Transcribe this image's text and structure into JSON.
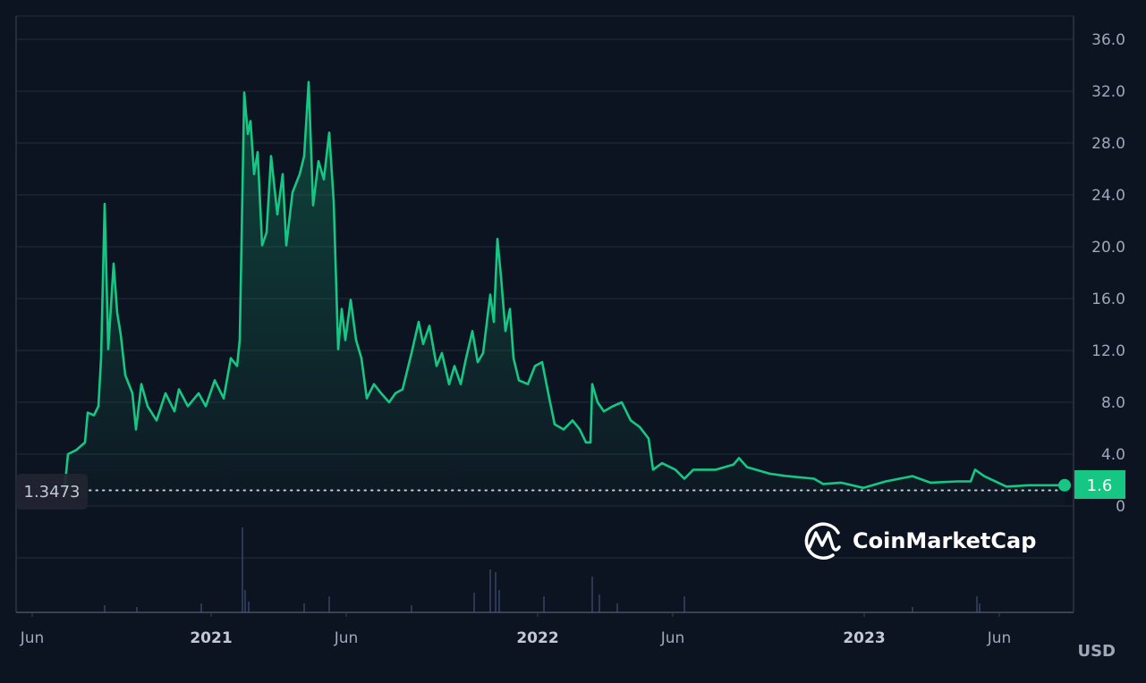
{
  "chart_data": {
    "type": "area",
    "title": "",
    "xlabel": "",
    "ylabel": "",
    "unit_label": "USD",
    "ylim": [
      0,
      36
    ],
    "y_ticks": [
      "0",
      "4.0",
      "8.0",
      "12.0",
      "16.0",
      "20.0",
      "24.0",
      "28.0",
      "32.0",
      "36.0"
    ],
    "y_tick_values": [
      0,
      4,
      8,
      12,
      16,
      20,
      24,
      28,
      32,
      36
    ],
    "x_ticks": [
      {
        "label": "Jun",
        "date": "2020-06-01",
        "year": false
      },
      {
        "label": "2021",
        "date": "2021-01-01",
        "year": true
      },
      {
        "label": "Jun",
        "date": "2021-06-01",
        "year": false
      },
      {
        "label": "2022",
        "date": "2022-01-01",
        "year": true
      },
      {
        "label": "Jun",
        "date": "2022-06-01",
        "year": false
      },
      {
        "label": "2023",
        "date": "2023-01-01",
        "year": true
      },
      {
        "label": "Jun",
        "date": "2023-06-01",
        "year": false
      }
    ],
    "grid": true,
    "line_color": "#16c784",
    "current_price_label": "1.6",
    "reference_price_label": "1.3473",
    "reference_price": 1.3473,
    "watermark": "CoinMarketCap",
    "series": [
      {
        "x": [
          "2020-07-21",
          "2020-07-25",
          "2020-08-03",
          "2020-08-13",
          "2020-08-16",
          "2020-08-23",
          "2020-08-28",
          "2020-08-31",
          "2020-09-04",
          "2020-09-08",
          "2020-09-14",
          "2020-09-18",
          "2020-09-22",
          "2020-09-27",
          "2020-10-05",
          "2020-10-09",
          "2020-10-15",
          "2020-10-22",
          "2020-11-01",
          "2020-11-11",
          "2020-11-21",
          "2020-11-26",
          "2020-12-06",
          "2020-12-18",
          "2020-12-26",
          "2021-01-05",
          "2021-01-15",
          "2021-01-23",
          "2021-01-30",
          "2021-02-02",
          "2021-02-07",
          "2021-02-11",
          "2021-02-14",
          "2021-02-18",
          "2021-02-22",
          "2021-02-27",
          "2021-03-04",
          "2021-03-09",
          "2021-03-16",
          "2021-03-22",
          "2021-03-26",
          "2021-04-02",
          "2021-04-10",
          "2021-04-15",
          "2021-04-20",
          "2021-04-25",
          "2021-05-01",
          "2021-05-07",
          "2021-05-13",
          "2021-05-18",
          "2021-05-23",
          "2021-05-27",
          "2021-05-31",
          "2021-06-06",
          "2021-06-12",
          "2021-06-18",
          "2021-06-24",
          "2021-07-02",
          "2021-07-10",
          "2021-07-19",
          "2021-07-26",
          "2021-08-03",
          "2021-08-13",
          "2021-08-21",
          "2021-08-26",
          "2021-09-02",
          "2021-09-10",
          "2021-09-16",
          "2021-09-24",
          "2021-09-30",
          "2021-10-07",
          "2021-10-12",
          "2021-10-20",
          "2021-10-26",
          "2021-11-01",
          "2021-11-09",
          "2021-11-13",
          "2021-11-17",
          "2021-11-21",
          "2021-11-26",
          "2021-12-01",
          "2021-12-05",
          "2021-12-11",
          "2021-12-21",
          "2021-12-29",
          "2022-01-06",
          "2022-01-14",
          "2022-01-20",
          "2022-01-30",
          "2022-02-09",
          "2022-02-17",
          "2022-02-24",
          "2022-03-01",
          "2022-03-03",
          "2022-03-09",
          "2022-03-16",
          "2022-03-26",
          "2022-04-05",
          "2022-04-15",
          "2022-04-25",
          "2022-05-05",
          "2022-05-10",
          "2022-05-20",
          "2022-06-04",
          "2022-06-14",
          "2022-06-24",
          "2022-07-19",
          "2022-08-08",
          "2022-08-14",
          "2022-08-23",
          "2022-09-17",
          "2022-10-07",
          "2022-11-06",
          "2022-11-16",
          "2022-12-06",
          "2022-12-31",
          "2023-01-25",
          "2023-02-24",
          "2023-03-16",
          "2023-04-15",
          "2023-04-30",
          "2023-05-05",
          "2023-05-15",
          "2023-06-09",
          "2023-07-04",
          "2023-08-13"
        ],
        "y": [
          1.2,
          4.0,
          4.3,
          4.9,
          7.2,
          7.0,
          7.7,
          11.4,
          23.3,
          12.1,
          18.7,
          14.9,
          13.2,
          10.1,
          8.7,
          5.9,
          9.4,
          7.7,
          6.6,
          8.7,
          7.3,
          9.0,
          7.7,
          8.7,
          7.7,
          9.7,
          8.3,
          11.4,
          10.8,
          12.8,
          31.9,
          28.7,
          29.7,
          25.6,
          27.3,
          20.1,
          21.1,
          27.0,
          22.5,
          25.6,
          20.1,
          24.2,
          25.6,
          27.0,
          32.7,
          23.2,
          26.6,
          25.2,
          28.8,
          23.5,
          12.1,
          15.2,
          12.8,
          15.9,
          12.8,
          11.4,
          8.3,
          9.4,
          8.7,
          8.0,
          8.7,
          9.0,
          11.8,
          14.2,
          12.5,
          13.9,
          10.8,
          11.8,
          9.4,
          10.8,
          9.4,
          11.1,
          13.5,
          11.1,
          11.8,
          16.3,
          14.2,
          20.6,
          17.7,
          13.5,
          15.2,
          11.4,
          9.7,
          9.4,
          10.8,
          11.1,
          8.3,
          6.3,
          5.9,
          6.6,
          5.9,
          4.9,
          4.9,
          9.4,
          8.0,
          7.3,
          7.7,
          8.0,
          6.6,
          6.1,
          5.2,
          2.8,
          3.3,
          2.8,
          2.1,
          2.8,
          2.8,
          3.2,
          3.7,
          3.0,
          2.5,
          2.3,
          2.1,
          1.7,
          1.8,
          1.4,
          1.9,
          2.3,
          1.8,
          1.9,
          1.9,
          2.8,
          2.3,
          1.5,
          1.6,
          1.6
        ]
      }
    ]
  }
}
